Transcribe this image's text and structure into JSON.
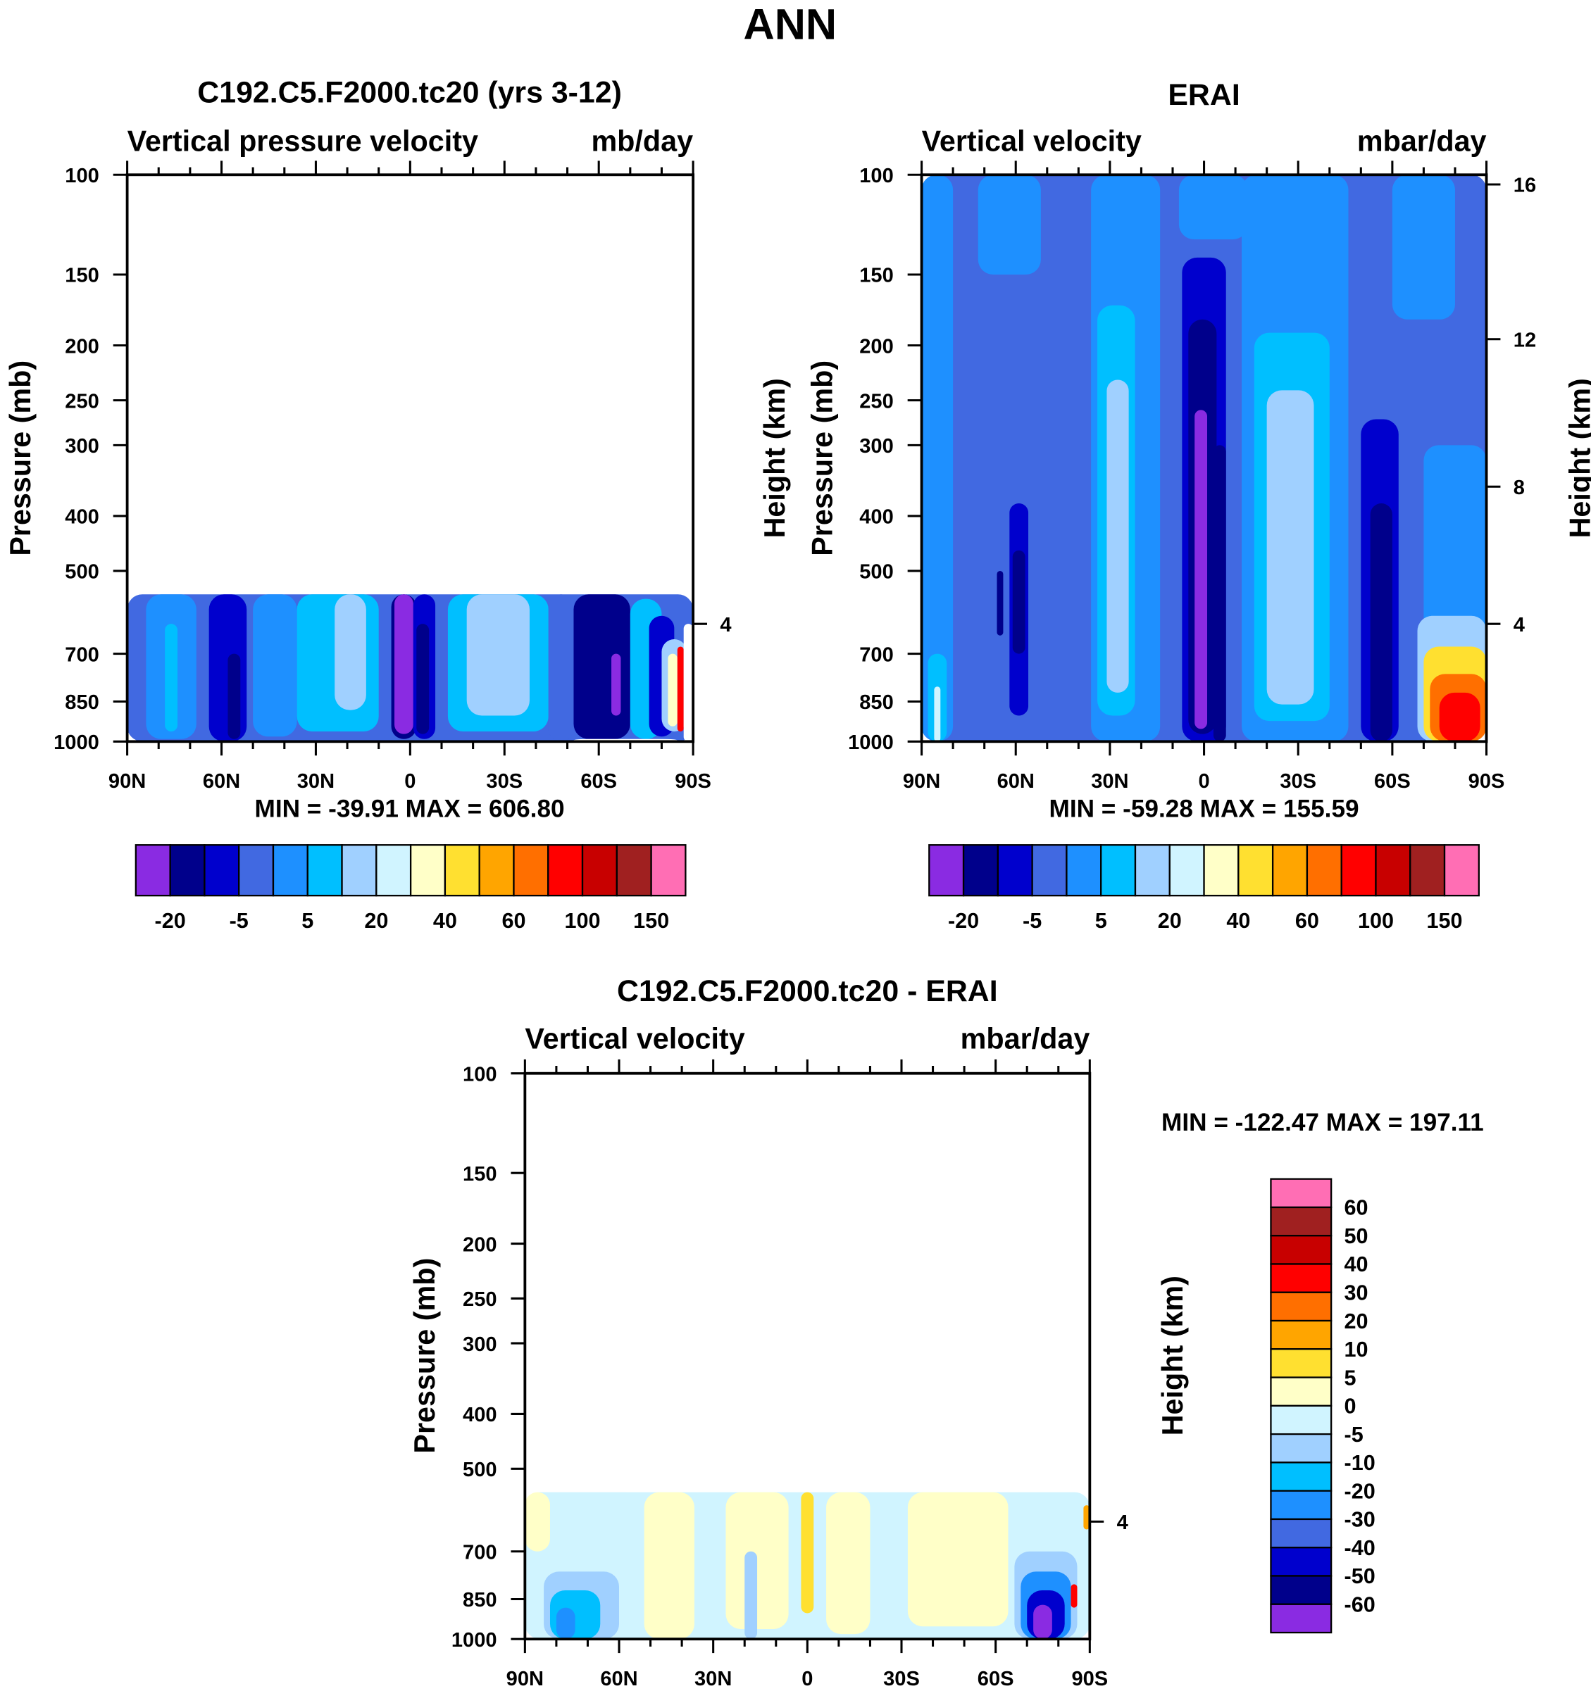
{
  "main_title": "ANN",
  "colors": [
    "#8a2be2",
    "#00008b",
    "#0000cd",
    "#4169e1",
    "#1e90ff",
    "#00bfff",
    "#a0d0ff",
    "#d0f4ff",
    "#ffffc8",
    "#ffe030",
    "#ffa500",
    "#ff6f00",
    "#ff0000",
    "#c80000",
    "#a02020",
    "#ff6eb4"
  ],
  "chart_data": [
    {
      "type": "heatmap",
      "title": "C192.C5.F2000.tc20 (yrs 3-12)",
      "left_subtitle": "Vertical pressure velocity",
      "right_subtitle": "mb/day",
      "ylabel": "Pressure (mb)",
      "stats": "MIN = -39.91   MAX = 606.80",
      "xticks": [
        "90N",
        "60N",
        "30N",
        "0",
        "30S",
        "60S",
        "90S"
      ],
      "yticks": [
        100,
        150,
        200,
        250,
        300,
        400,
        500,
        700,
        850,
        1000
      ],
      "height_ticks": [
        {
          "label": "4",
          "p": 620
        }
      ],
      "xlim": [
        90,
        -90
      ],
      "ylim": [
        100,
        1000
      ],
      "colorbar_labels": [
        "-20",
        "-5",
        "5",
        "20",
        "40",
        "60",
        "100",
        "150"
      ],
      "regions": [
        [
          90,
          -90,
          550,
          1000,
          3
        ],
        [
          84,
          68,
          550,
          990,
          4
        ],
        [
          78,
          74,
          620,
          960,
          5
        ],
        [
          64,
          52,
          550,
          1000,
          2
        ],
        [
          58,
          54,
          700,
          990,
          1
        ],
        [
          50,
          36,
          550,
          980,
          4
        ],
        [
          36,
          10,
          550,
          960,
          5
        ],
        [
          24,
          14,
          550,
          880,
          6
        ],
        [
          6,
          -2,
          550,
          990,
          1
        ],
        [
          5,
          -1,
          550,
          970,
          0
        ],
        [
          -1,
          -8,
          550,
          990,
          2
        ],
        [
          -2,
          -6,
          620,
          970,
          1
        ],
        [
          -12,
          -44,
          550,
          960,
          5
        ],
        [
          -18,
          -38,
          550,
          900,
          6
        ],
        [
          -44,
          -52,
          550,
          1000,
          3
        ],
        [
          -52,
          -70,
          550,
          990,
          1
        ],
        [
          -64,
          -67,
          700,
          900,
          0
        ],
        [
          -70,
          -80,
          560,
          990,
          5
        ],
        [
          -76,
          -84,
          600,
          980,
          2
        ],
        [
          -80,
          -88,
          660,
          960,
          6
        ],
        [
          -82,
          -85,
          700,
          940,
          8
        ],
        [
          -85,
          -87,
          680,
          960,
          12
        ],
        [
          -87,
          -90,
          620,
          1000,
          -1
        ],
        [
          -52,
          -85,
          990,
          1000,
          -1
        ]
      ]
    },
    {
      "type": "heatmap",
      "title": "ERAI",
      "left_subtitle": "Vertical velocity",
      "right_subtitle": "mbar/day",
      "ylabel": "Pressure (mb)",
      "ylabel_left_height": "Height (km)",
      "ylabel_right": "Height (km)",
      "stats": "MIN = -59.28   MAX = 155.59",
      "xticks": [
        "90N",
        "60N",
        "30N",
        "0",
        "30S",
        "60S",
        "90S"
      ],
      "yticks": [
        100,
        150,
        200,
        250,
        300,
        400,
        500,
        700,
        850,
        1000
      ],
      "height_ticks": [
        {
          "label": "16",
          "p": 104
        },
        {
          "label": "12",
          "p": 195
        },
        {
          "label": "8",
          "p": 355
        },
        {
          "label": "4",
          "p": 620
        }
      ],
      "xlim": [
        90,
        -90
      ],
      "ylim": [
        100,
        1000
      ],
      "colorbar_labels": [
        "-20",
        "-5",
        "5",
        "20",
        "40",
        "60",
        "100",
        "150"
      ],
      "regions": [
        [
          90,
          -90,
          100,
          1000,
          3
        ],
        [
          90,
          80,
          100,
          1000,
          4
        ],
        [
          72,
          52,
          100,
          150,
          4
        ],
        [
          36,
          14,
          100,
          1000,
          4
        ],
        [
          8,
          -14,
          100,
          130,
          4
        ],
        [
          -12,
          -46,
          100,
          1000,
          4
        ],
        [
          -60,
          -80,
          100,
          180,
          4
        ],
        [
          -70,
          -90,
          300,
          1000,
          4
        ],
        [
          88,
          82,
          700,
          1000,
          5
        ],
        [
          86,
          84,
          800,
          1000,
          7
        ],
        [
          62,
          56,
          380,
          900,
          2
        ],
        [
          61,
          57,
          460,
          700,
          1
        ],
        [
          66,
          64,
          500,
          650,
          1
        ],
        [
          34,
          22,
          170,
          900,
          5
        ],
        [
          31,
          24,
          230,
          820,
          6
        ],
        [
          7,
          -7,
          140,
          1000,
          2
        ],
        [
          5,
          -4,
          180,
          970,
          1
        ],
        [
          3,
          -1,
          260,
          950,
          0
        ],
        [
          -3,
          -7,
          300,
          1000,
          1
        ],
        [
          -16,
          -40,
          190,
          920,
          5
        ],
        [
          -20,
          -35,
          240,
          860,
          6
        ],
        [
          -50,
          -62,
          270,
          1000,
          2
        ],
        [
          -53,
          -60,
          380,
          1000,
          1
        ],
        [
          -68,
          -90,
          600,
          1000,
          6
        ],
        [
          -70,
          -90,
          680,
          1000,
          9
        ],
        [
          -72,
          -90,
          760,
          1000,
          11
        ],
        [
          -75,
          -88,
          820,
          1000,
          12
        ]
      ]
    },
    {
      "type": "heatmap",
      "title": "C192.C5.F2000.tc20 - ERAI",
      "left_subtitle": "Vertical velocity",
      "right_subtitle": "mbar/day",
      "ylabel": "Pressure (mb)",
      "ylabel_right": "Height (km)",
      "stats": "MIN = -122.47   MAX = 197.11",
      "xticks": [
        "90N",
        "60N",
        "30N",
        "0",
        "30S",
        "60S",
        "90S"
      ],
      "yticks": [
        100,
        150,
        200,
        250,
        300,
        400,
        500,
        700,
        850,
        1000
      ],
      "height_ticks": [
        {
          "label": "4",
          "p": 620
        }
      ],
      "xlim": [
        90,
        -90
      ],
      "ylim": [
        100,
        1000
      ],
      "colorbar_labels": [
        "60",
        "50",
        "40",
        "30",
        "20",
        "10",
        "5",
        "0",
        "-5",
        "-10",
        "-20",
        "-30",
        "-40",
        "-50",
        "-60"
      ],
      "colorbar_orientation": "vertical",
      "regions": [
        [
          90,
          -90,
          550,
          1000,
          7
        ],
        [
          90,
          82,
          550,
          700,
          8
        ],
        [
          52,
          36,
          550,
          1000,
          8
        ],
        [
          26,
          6,
          550,
          960,
          8
        ],
        [
          2,
          -2,
          550,
          900,
          9
        ],
        [
          -6,
          -20,
          550,
          980,
          8
        ],
        [
          -32,
          -64,
          550,
          950,
          8
        ],
        [
          84,
          60,
          760,
          1000,
          6
        ],
        [
          82,
          66,
          820,
          1000,
          5
        ],
        [
          80,
          74,
          880,
          1000,
          4
        ],
        [
          20,
          16,
          700,
          1000,
          6
        ],
        [
          -66,
          -86,
          700,
          1000,
          6
        ],
        [
          -68,
          -84,
          760,
          1000,
          4
        ],
        [
          -70,
          -82,
          820,
          1000,
          2
        ],
        [
          -72,
          -78,
          870,
          1000,
          0
        ],
        [
          -84,
          -86,
          800,
          880,
          12
        ],
        [
          -88,
          -90,
          580,
          640,
          10
        ]
      ]
    }
  ]
}
